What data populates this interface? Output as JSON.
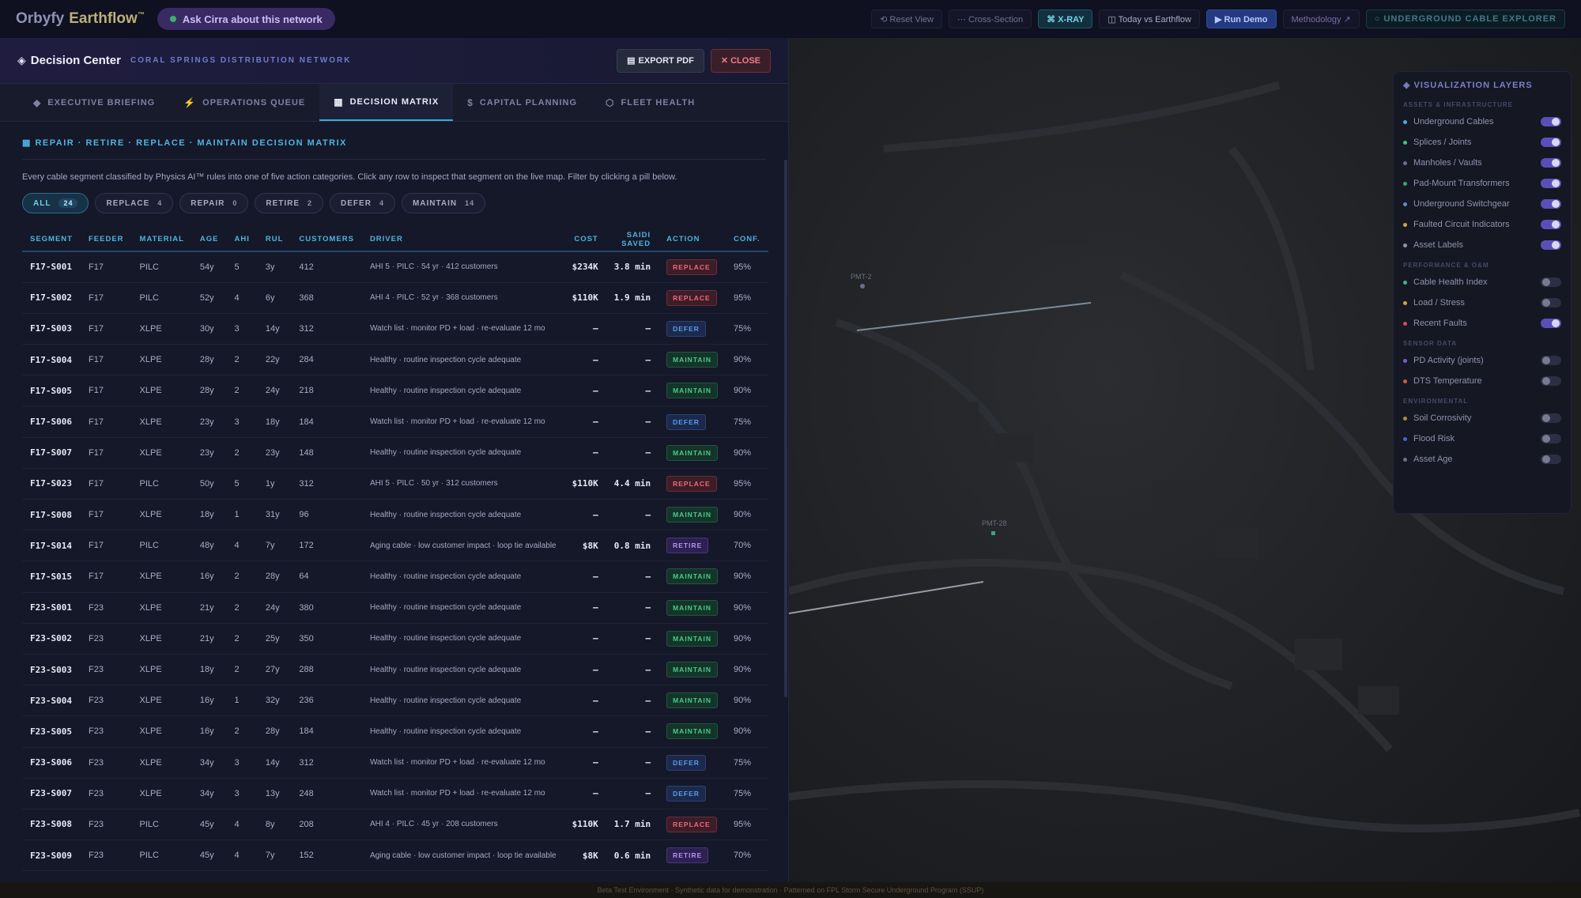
{
  "topbar": {
    "brand": "Orbyfy",
    "brand_sub": "Earthflow",
    "brand_tm": "™",
    "ask": "Ask Cirra about this network",
    "buttons": {
      "reset": "⟲ Reset View",
      "cross": "⋯ Cross-Section",
      "xray": "⌘ X-RAY",
      "today": "◫ Today vs Earthflow",
      "run": "▶ Run Demo",
      "method": "Methodology ↗",
      "uce": "○ UNDERGROUND CABLE EXPLORER"
    }
  },
  "panel": {
    "title": "Decision Center",
    "subtitle": "CORAL SPRINGS DISTRIBUTION NETWORK",
    "export": "EXPORT PDF",
    "close": "✕ CLOSE",
    "tabs": [
      {
        "icon": "◆",
        "label": "EXECUTIVE BRIEFING"
      },
      {
        "icon": "⚡",
        "label": "OPERATIONS QUEUE"
      },
      {
        "icon": "▦",
        "label": "DECISION MATRIX"
      },
      {
        "icon": "$",
        "label": "CAPITAL PLANNING"
      },
      {
        "icon": "⬡",
        "label": "FLEET HEALTH"
      }
    ]
  },
  "matrix": {
    "title": "REPAIR · RETIRE · REPLACE · MAINTAIN DECISION MATRIX",
    "description": "Every cable segment classified by Physics AI™ rules into one of five action categories. Click any row to inspect that segment on the live map. Filter by clicking a pill below.",
    "pills": [
      {
        "label": "ALL",
        "count": "24"
      },
      {
        "label": "REPLACE",
        "count": "4"
      },
      {
        "label": "REPAIR",
        "count": "0"
      },
      {
        "label": "RETIRE",
        "count": "2"
      },
      {
        "label": "DEFER",
        "count": "4"
      },
      {
        "label": "MAINTAIN",
        "count": "14"
      }
    ],
    "columns": [
      "SEGMENT",
      "FEEDER",
      "MATERIAL",
      "AGE",
      "AHI",
      "RUL",
      "CUSTOMERS",
      "DRIVER",
      "COST",
      "SAIDI SAVED",
      "ACTION",
      "CONF."
    ],
    "rows": [
      {
        "segment": "F17-S001",
        "feeder": "F17",
        "material": "PILC",
        "age": "54y",
        "ahi": "5",
        "rul": "3y",
        "customers": "412",
        "driver": "AHI 5 · PILC · 54 yr · 412 customers",
        "cost": "$234K",
        "saidi": "3.8 min",
        "action": "REPLACE",
        "conf": "95%"
      },
      {
        "segment": "F17-S002",
        "feeder": "F17",
        "material": "PILC",
        "age": "52y",
        "ahi": "4",
        "rul": "6y",
        "customers": "368",
        "driver": "AHI 4 · PILC · 52 yr · 368 customers",
        "cost": "$110K",
        "saidi": "1.9 min",
        "action": "REPLACE",
        "conf": "95%"
      },
      {
        "segment": "F17-S003",
        "feeder": "F17",
        "material": "XLPE",
        "age": "30y",
        "ahi": "3",
        "rul": "14y",
        "customers": "312",
        "driver": "Watch list · monitor PD + load · re-evaluate 12 mo",
        "cost": "—",
        "saidi": "—",
        "action": "DEFER",
        "conf": "75%"
      },
      {
        "segment": "F17-S004",
        "feeder": "F17",
        "material": "XLPE",
        "age": "28y",
        "ahi": "2",
        "rul": "22y",
        "customers": "284",
        "driver": "Healthy · routine inspection cycle adequate",
        "cost": "—",
        "saidi": "—",
        "action": "MAINTAIN",
        "conf": "90%"
      },
      {
        "segment": "F17-S005",
        "feeder": "F17",
        "material": "XLPE",
        "age": "28y",
        "ahi": "2",
        "rul": "24y",
        "customers": "218",
        "driver": "Healthy · routine inspection cycle adequate",
        "cost": "—",
        "saidi": "—",
        "action": "MAINTAIN",
        "conf": "90%"
      },
      {
        "segment": "F17-S006",
        "feeder": "F17",
        "material": "XLPE",
        "age": "23y",
        "ahi": "3",
        "rul": "18y",
        "customers": "184",
        "driver": "Watch list · monitor PD + load · re-evaluate 12 mo",
        "cost": "—",
        "saidi": "—",
        "action": "DEFER",
        "conf": "75%"
      },
      {
        "segment": "F17-S007",
        "feeder": "F17",
        "material": "XLPE",
        "age": "23y",
        "ahi": "2",
        "rul": "23y",
        "customers": "148",
        "driver": "Healthy · routine inspection cycle adequate",
        "cost": "—",
        "saidi": "—",
        "action": "MAINTAIN",
        "conf": "90%"
      },
      {
        "segment": "F17-S023",
        "feeder": "F17",
        "material": "PILC",
        "age": "50y",
        "ahi": "5",
        "rul": "1y",
        "customers": "312",
        "driver": "AHI 5 · PILC · 50 yr · 312 customers",
        "cost": "$110K",
        "saidi": "4.4 min",
        "action": "REPLACE",
        "conf": "95%"
      },
      {
        "segment": "F17-S008",
        "feeder": "F17",
        "material": "XLPE",
        "age": "18y",
        "ahi": "1",
        "rul": "31y",
        "customers": "96",
        "driver": "Healthy · routine inspection cycle adequate",
        "cost": "—",
        "saidi": "—",
        "action": "MAINTAIN",
        "conf": "90%"
      },
      {
        "segment": "F17-S014",
        "feeder": "F17",
        "material": "PILC",
        "age": "48y",
        "ahi": "4",
        "rul": "7y",
        "customers": "172",
        "driver": "Aging cable · low customer impact · loop tie available",
        "cost": "$8K",
        "saidi": "0.8 min",
        "action": "RETIRE",
        "conf": "70%"
      },
      {
        "segment": "F17-S015",
        "feeder": "F17",
        "material": "XLPE",
        "age": "16y",
        "ahi": "2",
        "rul": "28y",
        "customers": "64",
        "driver": "Healthy · routine inspection cycle adequate",
        "cost": "—",
        "saidi": "—",
        "action": "MAINTAIN",
        "conf": "90%"
      },
      {
        "segment": "F23-S001",
        "feeder": "F23",
        "material": "XLPE",
        "age": "21y",
        "ahi": "2",
        "rul": "24y",
        "customers": "380",
        "driver": "Healthy · routine inspection cycle adequate",
        "cost": "—",
        "saidi": "—",
        "action": "MAINTAIN",
        "conf": "90%"
      },
      {
        "segment": "F23-S002",
        "feeder": "F23",
        "material": "XLPE",
        "age": "21y",
        "ahi": "2",
        "rul": "25y",
        "customers": "350",
        "driver": "Healthy · routine inspection cycle adequate",
        "cost": "—",
        "saidi": "—",
        "action": "MAINTAIN",
        "conf": "90%"
      },
      {
        "segment": "F23-S003",
        "feeder": "F23",
        "material": "XLPE",
        "age": "18y",
        "ahi": "2",
        "rul": "27y",
        "customers": "288",
        "driver": "Healthy · routine inspection cycle adequate",
        "cost": "—",
        "saidi": "—",
        "action": "MAINTAIN",
        "conf": "90%"
      },
      {
        "segment": "F23-S004",
        "feeder": "F23",
        "material": "XLPE",
        "age": "16y",
        "ahi": "1",
        "rul": "32y",
        "customers": "236",
        "driver": "Healthy · routine inspection cycle adequate",
        "cost": "—",
        "saidi": "—",
        "action": "MAINTAIN",
        "conf": "90%"
      },
      {
        "segment": "F23-S005",
        "feeder": "F23",
        "material": "XLPE",
        "age": "16y",
        "ahi": "2",
        "rul": "28y",
        "customers": "184",
        "driver": "Healthy · routine inspection cycle adequate",
        "cost": "—",
        "saidi": "—",
        "action": "MAINTAIN",
        "conf": "90%"
      },
      {
        "segment": "F23-S006",
        "feeder": "F23",
        "material": "XLPE",
        "age": "34y",
        "ahi": "3",
        "rul": "14y",
        "customers": "312",
        "driver": "Watch list · monitor PD + load · re-evaluate 12 mo",
        "cost": "—",
        "saidi": "—",
        "action": "DEFER",
        "conf": "75%"
      },
      {
        "segment": "F23-S007",
        "feeder": "F23",
        "material": "XLPE",
        "age": "34y",
        "ahi": "3",
        "rul": "13y",
        "customers": "248",
        "driver": "Watch list · monitor PD + load · re-evaluate 12 mo",
        "cost": "—",
        "saidi": "—",
        "action": "DEFER",
        "conf": "75%"
      },
      {
        "segment": "F23-S008",
        "feeder": "F23",
        "material": "PILC",
        "age": "45y",
        "ahi": "4",
        "rul": "8y",
        "customers": "208",
        "driver": "AHI 4 · PILC · 45 yr · 208 customers",
        "cost": "$110K",
        "saidi": "1.7 min",
        "action": "REPLACE",
        "conf": "95%"
      },
      {
        "segment": "F23-S009",
        "feeder": "F23",
        "material": "PILC",
        "age": "45y",
        "ahi": "4",
        "rul": "7y",
        "customers": "152",
        "driver": "Aging cable · low customer impact · loop tie available",
        "cost": "$8K",
        "saidi": "0.6 min",
        "action": "RETIRE",
        "conf": "70%"
      }
    ]
  },
  "layers": {
    "title": "◈ VISUALIZATION LAYERS",
    "sections": [
      {
        "label": "ASSETS & INFRASTRUCTURE",
        "items": [
          {
            "name": "Underground Cables",
            "on": true,
            "color": "#3fb1d6"
          },
          {
            "name": "Splices / Joints",
            "on": true,
            "color": "#44c08a"
          },
          {
            "name": "Manholes / Vaults",
            "on": true,
            "color": "#6a6f8c"
          },
          {
            "name": "Pad-Mount Transformers",
            "on": true,
            "color": "#3aa37a"
          },
          {
            "name": "Underground Switchgear",
            "on": true,
            "color": "#5a8ad6"
          },
          {
            "name": "Faulted Circuit Indicators",
            "on": true,
            "color": "#d6a33a"
          },
          {
            "name": "Asset Labels",
            "on": true,
            "color": "#8f93ae"
          }
        ]
      },
      {
        "label": "PERFORMANCE & O&M",
        "items": [
          {
            "name": "Cable Health Index",
            "on": false,
            "color": "#3fb58a"
          },
          {
            "name": "Load / Stress",
            "on": false,
            "color": "#d6a33a"
          },
          {
            "name": "Recent Faults",
            "on": true,
            "color": "#d64a5a"
          }
        ]
      },
      {
        "label": "SENSOR DATA",
        "items": [
          {
            "name": "PD Activity (joints)",
            "on": false,
            "color": "#7a5ad6"
          },
          {
            "name": "DTS Temperature",
            "on": false,
            "color": "#d65a3a"
          }
        ]
      },
      {
        "label": "ENVIRONMENTAL",
        "items": [
          {
            "name": "Soil Corrosivity",
            "on": false,
            "color": "#b58a3a"
          },
          {
            "name": "Flood Risk",
            "on": false,
            "color": "#3a6ad6"
          },
          {
            "name": "Asset Age",
            "on": false,
            "color": "#6a6f8c"
          }
        ]
      }
    ]
  },
  "map": {
    "label_1": "PMT-2",
    "label_2": "PMT-28"
  },
  "footer": "Beta Test Environment · Synthetic data for demonstration · Patterned on FPL Storm Secure Underground Program (SSUP)"
}
